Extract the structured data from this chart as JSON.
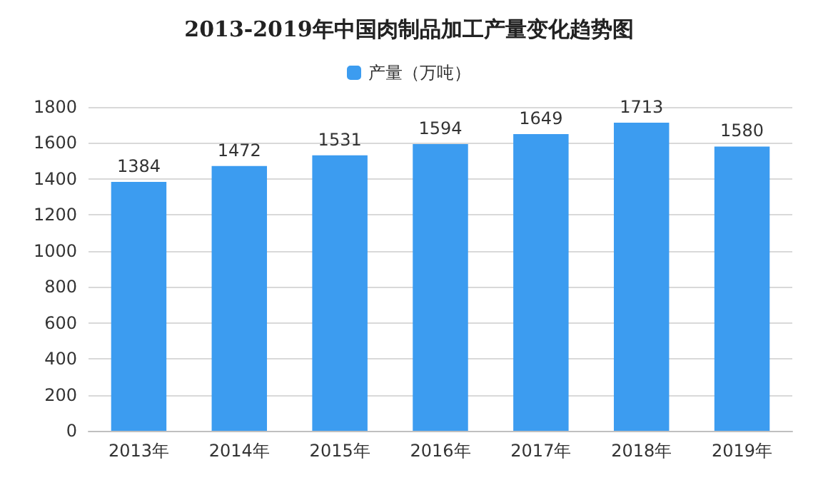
{
  "chart_data": {
    "type": "bar",
    "title": "2013-2019年中国肉制品加工产量变化趋势图",
    "categories": [
      "2013年",
      "2014年",
      "2015年",
      "2016年",
      "2017年",
      "2018年",
      "2019年"
    ],
    "series": [
      {
        "name": "产量（万吨）",
        "color": "#3c9cf0",
        "values": [
          1384,
          1472,
          1531,
          1594,
          1649,
          1713,
          1580
        ]
      }
    ],
    "ylim": [
      0,
      1800
    ],
    "yticks": [
      0,
      200,
      400,
      600,
      800,
      1000,
      1200,
      1400,
      1600,
      1800
    ],
    "grid": "y",
    "legend": "top",
    "data_labels": true
  }
}
